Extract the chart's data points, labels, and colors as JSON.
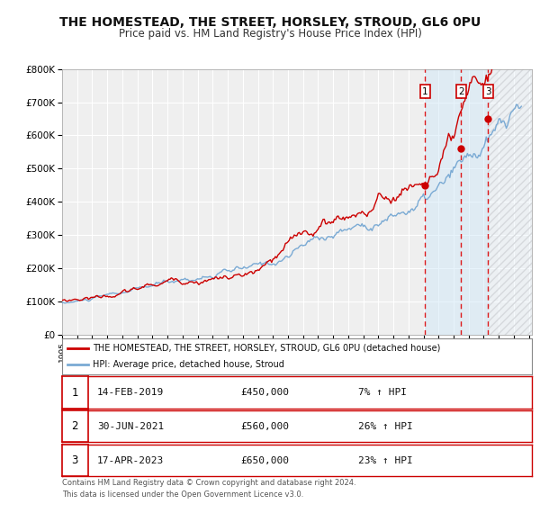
{
  "title": "THE HOMESTEAD, THE STREET, HORSLEY, STROUD, GL6 0PU",
  "subtitle": "Price paid vs. HM Land Registry's House Price Index (HPI)",
  "title_fontsize": 10,
  "subtitle_fontsize": 8.5,
  "background_color": "#ffffff",
  "plot_bg_color": "#efefef",
  "grid_color": "#ffffff",
  "ylim": [
    0,
    800000
  ],
  "xlim_start": 1995.0,
  "xlim_end": 2026.2,
  "ytick_labels": [
    "£0",
    "£100K",
    "£200K",
    "£300K",
    "£400K",
    "£500K",
    "£600K",
    "£700K",
    "£800K"
  ],
  "ytick_values": [
    0,
    100000,
    200000,
    300000,
    400000,
    500000,
    600000,
    700000,
    800000
  ],
  "sale_dates_num": [
    2019.115,
    2021.497,
    2023.296
  ],
  "sale_prices": [
    450000,
    560000,
    650000
  ],
  "sale_labels": [
    "1",
    "2",
    "3"
  ],
  "sale_color": "#cc0000",
  "hpi_line_color": "#7aaad4",
  "price_line_color": "#cc0000",
  "vline_color": "#dd0000",
  "shade_color": "#d0e8f8",
  "shade_alpha": 0.5,
  "legend_line1": "THE HOMESTEAD, THE STREET, HORSLEY, STROUD, GL6 0PU (detached house)",
  "legend_line2": "HPI: Average price, detached house, Stroud",
  "table_entries": [
    {
      "num": "1",
      "date": "14-FEB-2019",
      "price": "£450,000",
      "pct": "7% ↑ HPI"
    },
    {
      "num": "2",
      "date": "30-JUN-2021",
      "price": "£560,000",
      "pct": "26% ↑ HPI"
    },
    {
      "num": "3",
      "date": "17-APR-2023",
      "price": "£650,000",
      "pct": "23% ↑ HPI"
    }
  ],
  "footnote1": "Contains HM Land Registry data © Crown copyright and database right 2024.",
  "footnote2": "This data is licensed under the Open Government Licence v3.0."
}
